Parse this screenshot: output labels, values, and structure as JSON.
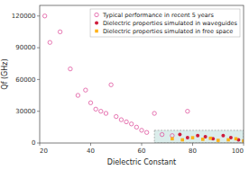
{
  "chart_data": {
    "type": "scatter",
    "x_label": "Dielectric Constant",
    "y_label": "Qf (GHz)",
    "xlim": [
      20,
      100
    ],
    "ylim": [
      0,
      130000
    ],
    "xticks": [
      20,
      40,
      60,
      80,
      100
    ],
    "yticks": [
      0,
      30000,
      60000,
      90000,
      120000
    ],
    "grid": false,
    "legend": "upper right",
    "shaded_region": {
      "x": [
        65,
        100
      ],
      "y": [
        0,
        12000
      ],
      "color": "#b8dcd8"
    },
    "series": [
      {
        "name": "Typical performance in recent 5 years",
        "color": "#e055a0",
        "marker": "circle-open",
        "x": [
          22,
          24,
          28,
          32,
          35,
          38,
          40,
          42,
          44,
          46,
          48,
          50,
          52,
          54,
          56,
          58,
          60,
          62,
          65,
          68,
          72,
          78
        ],
        "values": [
          120000,
          95000,
          105000,
          70000,
          45000,
          50000,
          38000,
          32000,
          30000,
          28000,
          55000,
          25000,
          22000,
          20000,
          18000,
          15000,
          12000,
          10000,
          28000,
          8000,
          7000,
          30000
        ]
      },
      {
        "name": "Dielectric properties simulated in waveguides",
        "color": "#cc1133",
        "marker": "circle",
        "x": [
          75,
          78,
          82,
          85,
          88,
          92,
          95,
          98
        ],
        "values": [
          8000,
          5000,
          7000,
          6000,
          4000,
          7000,
          5000,
          3000
        ]
      },
      {
        "name": "Dielectric properties simulated in free space",
        "color": "#ffaa00",
        "marker": "square",
        "x": [
          72,
          76,
          80,
          84,
          87,
          90,
          94,
          97,
          100
        ],
        "values": [
          4000,
          3000,
          5000,
          3500,
          4500,
          2500,
          3000,
          4000,
          2000
        ]
      }
    ]
  }
}
